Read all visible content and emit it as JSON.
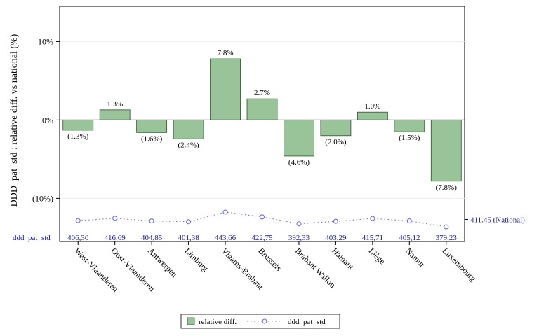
{
  "chart_data": {
    "type": "bar",
    "ylabel": "DDD_pat_std : relative diff. vs national (%)",
    "ylim": [
      -15.5,
      14.5
    ],
    "y_ticks": [
      {
        "value": 10,
        "label": "10%"
      },
      {
        "value": 0,
        "label": "0%"
      },
      {
        "value": -10,
        "label": "(10%)"
      }
    ],
    "categories": [
      "West-Vlaanderen",
      "Oost-Vlaanderen",
      "Antwerpen",
      "Limburg",
      "Vlaams-Brabant",
      "Brussels",
      "Brabant Wallon",
      "Hainaut",
      "Liège",
      "Namur",
      "Luxembourg"
    ],
    "series": [
      {
        "name": "relative diff.",
        "type": "bar",
        "color": "#99c499",
        "values": [
          -1.3,
          1.3,
          -1.6,
          -2.4,
          7.8,
          2.7,
          -4.6,
          -2.0,
          1.0,
          -1.5,
          -7.8
        ],
        "labels": [
          "(1.3%)",
          "1.3%",
          "(1.6%)",
          "(2.4%)",
          "7.8%",
          "2.7%",
          "(4.6%)",
          "(2.0%)",
          "1.0%",
          "(1.5%)",
          "(7.8%)"
        ]
      },
      {
        "name": "ddd_pat_std",
        "type": "line",
        "color": "#6b6bd6",
        "values": [
          406.3,
          416.69,
          404.85,
          401.38,
          443.66,
          422.75,
          392.33,
          403.29,
          415.71,
          405.12,
          379.23
        ],
        "labels": [
          "406,30",
          "416,69",
          "404,85",
          "401,38",
          "443,66",
          "422,75",
          "392,33",
          "403,29",
          "415,71",
          "405,12",
          "379,23"
        ]
      }
    ],
    "row_label": "ddd_pat_std",
    "reference": {
      "value": 411.45,
      "label": "411.45 (National)"
    },
    "legend": {
      "position": "bottom",
      "items": [
        "relative diff.",
        "ddd_pat_std"
      ]
    }
  }
}
